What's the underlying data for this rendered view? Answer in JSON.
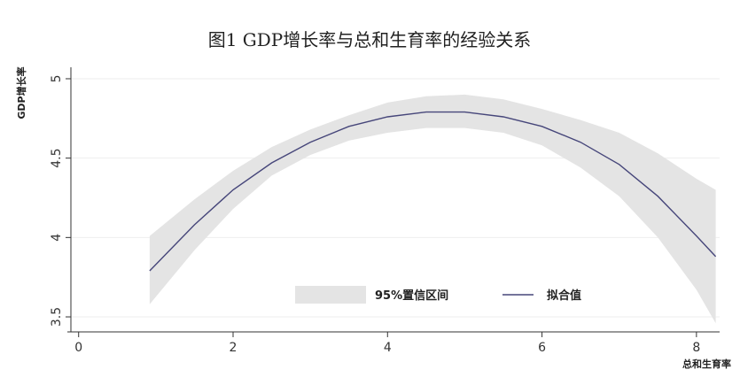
{
  "chart_data": {
    "type": "line",
    "title": "图1 GDP增长率与总和生育率的经验关系",
    "xlabel": "总和生育率",
    "ylabel": "GDP增长率",
    "xlim": [
      -0.1,
      8.3
    ],
    "ylim": [
      3.45,
      5.05
    ],
    "x_ticks": [
      0,
      2,
      4,
      6,
      8
    ],
    "y_ticks": [
      3.5,
      4,
      4.5,
      5
    ],
    "x_tick_labels": [
      "0",
      "2",
      "4",
      "6",
      "8"
    ],
    "y_tick_labels": [
      "3.5",
      "4",
      "4.5",
      "5"
    ],
    "grid": true,
    "legend_position": "bottom-center",
    "legend": [
      {
        "label": "95%置信区间",
        "kind": "band"
      },
      {
        "label": "拟合值",
        "kind": "line"
      }
    ],
    "series": [
      {
        "name": "拟合值",
        "kind": "line",
        "color": "#46467a",
        "x": [
          0.92,
          1.5,
          2.0,
          2.5,
          3.0,
          3.5,
          4.0,
          4.5,
          5.0,
          5.5,
          6.0,
          6.5,
          7.0,
          7.5,
          8.0,
          8.25
        ],
        "y": [
          3.79,
          4.08,
          4.3,
          4.47,
          4.6,
          4.7,
          4.76,
          4.79,
          4.79,
          4.76,
          4.7,
          4.6,
          4.46,
          4.26,
          4.01,
          3.88
        ]
      },
      {
        "name": "95%置信区间",
        "kind": "band",
        "color": "#e4e4e4",
        "x": [
          0.92,
          1.5,
          2.0,
          2.5,
          3.0,
          3.5,
          4.0,
          4.5,
          5.0,
          5.5,
          6.0,
          6.5,
          7.0,
          7.5,
          8.0,
          8.25
        ],
        "lower": [
          3.58,
          3.92,
          4.18,
          4.39,
          4.52,
          4.61,
          4.66,
          4.69,
          4.69,
          4.66,
          4.58,
          4.44,
          4.26,
          4.0,
          3.67,
          3.46
        ],
        "upper": [
          4.01,
          4.24,
          4.42,
          4.57,
          4.68,
          4.77,
          4.85,
          4.89,
          4.9,
          4.87,
          4.81,
          4.74,
          4.66,
          4.53,
          4.37,
          4.3
        ]
      }
    ]
  }
}
